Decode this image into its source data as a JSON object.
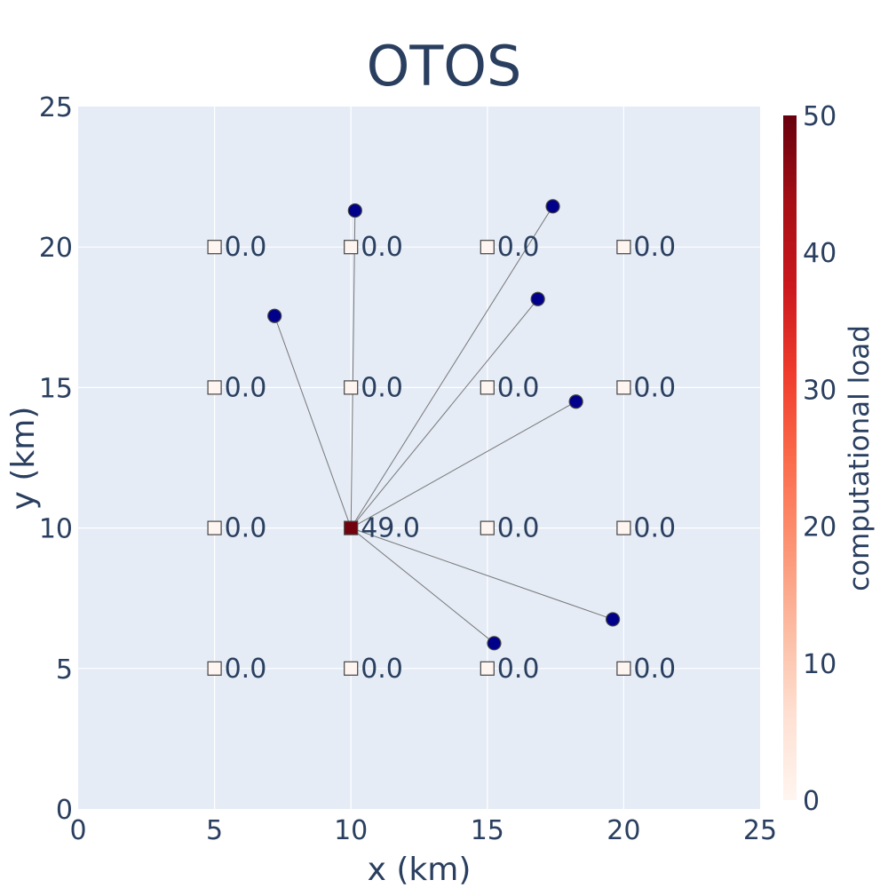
{
  "chart_data": {
    "type": "scatter",
    "title": "OTOS",
    "xlabel": "x (km)",
    "ylabel": "y (km)",
    "xlim": [
      0,
      25
    ],
    "ylim": [
      0,
      25
    ],
    "x_ticks": [
      "0",
      "5",
      "10",
      "15",
      "20",
      "25"
    ],
    "y_ticks": [
      "0",
      "5",
      "10",
      "15",
      "20",
      "25"
    ],
    "grid": true,
    "plot_background": "#e5ecf6",
    "servers": [
      {
        "x": 5,
        "y": 20,
        "load": 0,
        "label": "0.0"
      },
      {
        "x": 10,
        "y": 20,
        "load": 0,
        "label": "0.0"
      },
      {
        "x": 15,
        "y": 20,
        "load": 0,
        "label": "0.0"
      },
      {
        "x": 20,
        "y": 20,
        "load": 0,
        "label": "0.0"
      },
      {
        "x": 5,
        "y": 15,
        "load": 0,
        "label": "0.0"
      },
      {
        "x": 10,
        "y": 15,
        "load": 0,
        "label": "0.0"
      },
      {
        "x": 15,
        "y": 15,
        "load": 0,
        "label": "0.0"
      },
      {
        "x": 20,
        "y": 15,
        "load": 0,
        "label": "0.0"
      },
      {
        "x": 5,
        "y": 10,
        "load": 0,
        "label": "0.0"
      },
      {
        "x": 10,
        "y": 10,
        "load": 49,
        "label": "49.0"
      },
      {
        "x": 15,
        "y": 10,
        "load": 0,
        "label": "0.0"
      },
      {
        "x": 20,
        "y": 10,
        "load": 0,
        "label": "0.0"
      },
      {
        "x": 5,
        "y": 5,
        "load": 0,
        "label": "0.0"
      },
      {
        "x": 10,
        "y": 5,
        "load": 0,
        "label": "0.0"
      },
      {
        "x": 15,
        "y": 5,
        "load": 0,
        "label": "0.0"
      },
      {
        "x": 20,
        "y": 5,
        "load": 0,
        "label": "0.0"
      }
    ],
    "users": [
      {
        "x": 10.15,
        "y": 21.3,
        "server": [
          10,
          10
        ]
      },
      {
        "x": 7.2,
        "y": 17.55,
        "server": [
          10,
          10
        ]
      },
      {
        "x": 17.4,
        "y": 21.45,
        "server": [
          10,
          10
        ]
      },
      {
        "x": 16.85,
        "y": 18.15,
        "server": [
          10,
          10
        ]
      },
      {
        "x": 18.25,
        "y": 14.5,
        "server": [
          10,
          10
        ]
      },
      {
        "x": 19.6,
        "y": 6.75,
        "server": [
          10,
          10
        ]
      },
      {
        "x": 15.25,
        "y": 5.9,
        "server": [
          10,
          10
        ]
      }
    ],
    "user_color": "#00008b",
    "link_color": "#777777",
    "colorbar": {
      "title": "computational load",
      "range": [
        0,
        50
      ],
      "ticks": [
        "0",
        "10",
        "20",
        "30",
        "40",
        "50"
      ],
      "colorscale": [
        "#fff5f0",
        "#fee0d2",
        "#fcbba1",
        "#fc9272",
        "#fb6a4a",
        "#ef3b2c",
        "#cb181d",
        "#a50f15",
        "#67000d"
      ]
    }
  }
}
